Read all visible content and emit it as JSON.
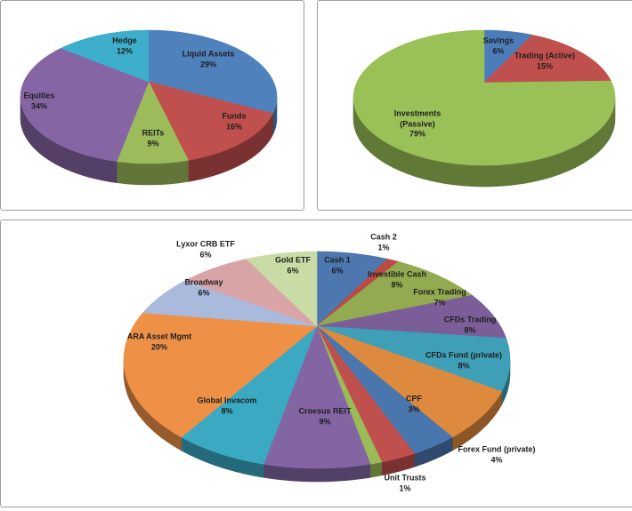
{
  "page": {
    "background": "#ffffff",
    "panel_border": "#9e9e9e",
    "label_text_color": "#1e1e1e"
  },
  "chart_data": [
    {
      "id": "liquid-assets-allocation",
      "type": "pie",
      "projection": "3d",
      "title": "",
      "legend": "none",
      "label_format": "name + percent",
      "start_angle_deg": 0,
      "slices": [
        {
          "name": "Liquid Assets",
          "value": 29,
          "color": "#4F81BD"
        },
        {
          "name": "Funds",
          "value": 16,
          "color": "#C0504D"
        },
        {
          "name": "REITs",
          "value": 9,
          "color": "#9CBC5B"
        },
        {
          "name": "Equities",
          "value": 34,
          "color": "#8565A3"
        },
        {
          "name": "Hedge",
          "value": 12,
          "color": "#3DAECC"
        }
      ]
    },
    {
      "id": "active-passive-split",
      "type": "pie",
      "projection": "3d",
      "title": "",
      "legend": "none",
      "label_format": "name + percent",
      "start_angle_deg": 0,
      "slices": [
        {
          "name": "Savings",
          "value": 6,
          "color": "#4C7CBA"
        },
        {
          "name": "Trading (Active)",
          "value": 15,
          "color": "#C0504D"
        },
        {
          "name": "Investments (Passive)",
          "value": 79,
          "color": "#9AC058",
          "display": "Investments\n(Passive)\n79%"
        }
      ]
    },
    {
      "id": "holdings-breakdown",
      "type": "pie",
      "projection": "3d",
      "title": "",
      "legend": "none",
      "label_format": "name + percent",
      "start_angle_deg": 0,
      "slices": [
        {
          "name": "Cash 1",
          "value": 6,
          "color": "#4C77AF"
        },
        {
          "name": "Cash 2",
          "value": 1,
          "color": "#BB4A45"
        },
        {
          "name": "Investible Cash",
          "value": 8,
          "color": "#93AB50"
        },
        {
          "name": "Forex Trading",
          "value": 7,
          "color": "#7B5E97"
        },
        {
          "name": "CFDs Trading",
          "value": 8,
          "color": "#3E9FB6"
        },
        {
          "name": "CFDs Fund (private)",
          "value": 8,
          "color": "#DD8A3E"
        },
        {
          "name": "Forex Fund (private)",
          "value": 4,
          "color": "#4A76AE"
        },
        {
          "name": "CPF",
          "value": 3,
          "color": "#C0504D"
        },
        {
          "name": "Unit Trusts",
          "value": 1,
          "color": "#9BBB59"
        },
        {
          "name": "Croesus REIT",
          "value": 9,
          "color": "#8365A4"
        },
        {
          "name": "Global Invacom",
          "value": 8,
          "color": "#3BA9C2"
        },
        {
          "name": "ARA Asset Mgmt",
          "value": 20,
          "color": "#EE9147"
        },
        {
          "name": "Broadway",
          "value": 6,
          "color": "#AABADC"
        },
        {
          "name": "Lyxor CRB ETF",
          "value": 6,
          "color": "#D8A4A6"
        },
        {
          "name": "Gold ETF",
          "value": 6,
          "color": "#C9DCA6"
        }
      ]
    }
  ]
}
